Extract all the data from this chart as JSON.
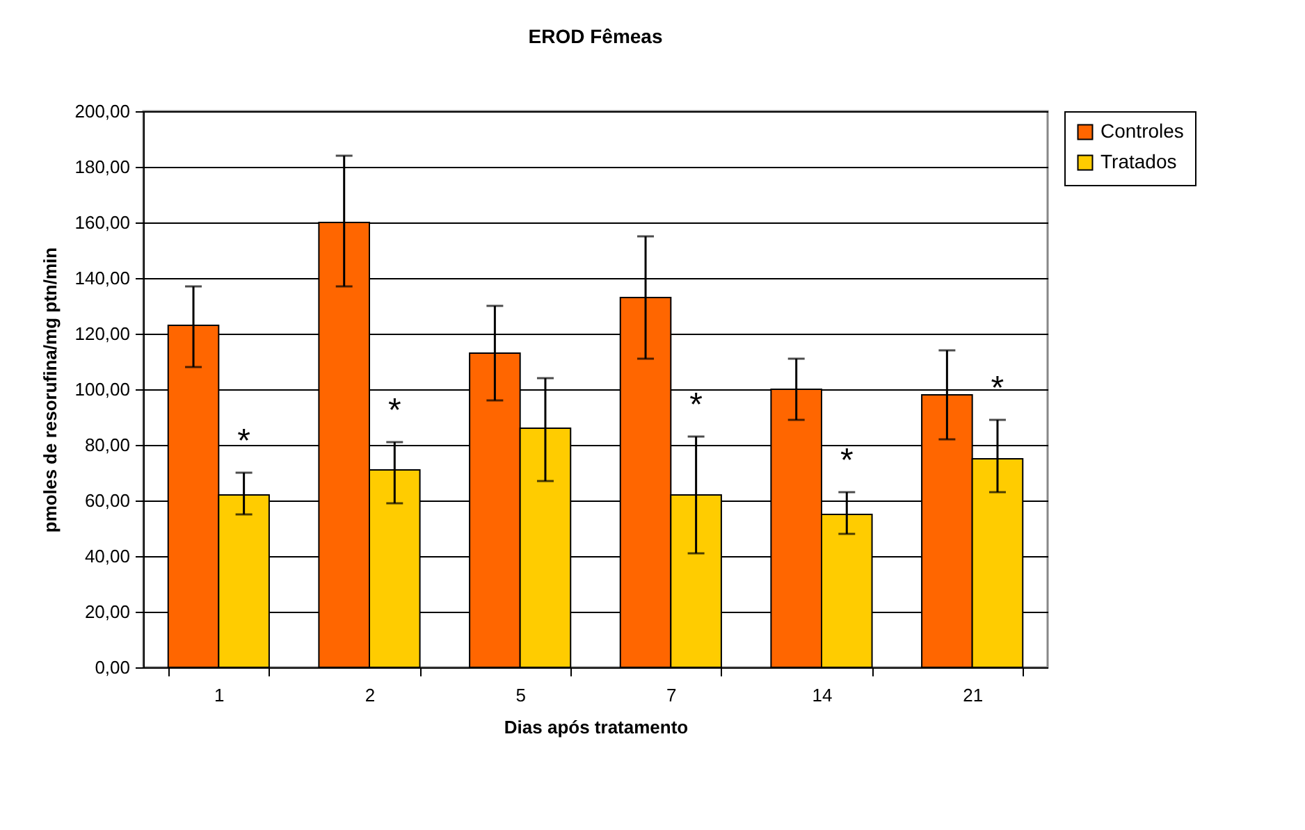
{
  "chart_data": {
    "type": "bar",
    "title": "EROD Fêmeas",
    "xlabel": "Dias após tratamento",
    "ylabel": "pmoles de resorufina/mg ptn/min",
    "categories": [
      "1",
      "2",
      "5",
      "7",
      "14",
      "21"
    ],
    "series": [
      {
        "name": "Controles",
        "color": "#ff6600",
        "values": [
          123,
          160,
          113,
          133,
          100,
          98
        ],
        "errors": [
          [
            108,
            137
          ],
          [
            137,
            184
          ],
          [
            96,
            130
          ],
          [
            111,
            155
          ],
          [
            89,
            111
          ],
          [
            82,
            114
          ]
        ]
      },
      {
        "name": "Tratados",
        "color": "#ffcc00",
        "values": [
          62,
          71,
          86,
          62,
          55,
          75
        ],
        "errors": [
          [
            55,
            70
          ],
          [
            59,
            81
          ],
          [
            67,
            104
          ],
          [
            41,
            83
          ],
          [
            48,
            63
          ],
          [
            63,
            89
          ]
        ]
      }
    ],
    "ylim": [
      0,
      200
    ],
    "yticks": [
      {
        "value": 0,
        "label": "0,00"
      },
      {
        "value": 20,
        "label": "20,00"
      },
      {
        "value": 40,
        "label": "40,00"
      },
      {
        "value": 60,
        "label": "60,00"
      },
      {
        "value": 80,
        "label": "80,00"
      },
      {
        "value": 100,
        "label": "100,00"
      },
      {
        "value": 120,
        "label": "120,00"
      },
      {
        "value": 140,
        "label": "140,00"
      },
      {
        "value": 160,
        "label": "160,00"
      },
      {
        "value": 180,
        "label": "180,00"
      },
      {
        "value": 200,
        "label": "200,00"
      }
    ],
    "grid": "y",
    "legend": "right",
    "annotations": [
      {
        "text": "*",
        "x": "1",
        "y": 70
      },
      {
        "text": "*",
        "x": "2",
        "y": 81
      },
      {
        "text": "*",
        "x": "7",
        "y": 83
      },
      {
        "text": "*",
        "x": "14",
        "y": 63
      },
      {
        "text": "*",
        "x": "21",
        "y": 89
      }
    ]
  }
}
